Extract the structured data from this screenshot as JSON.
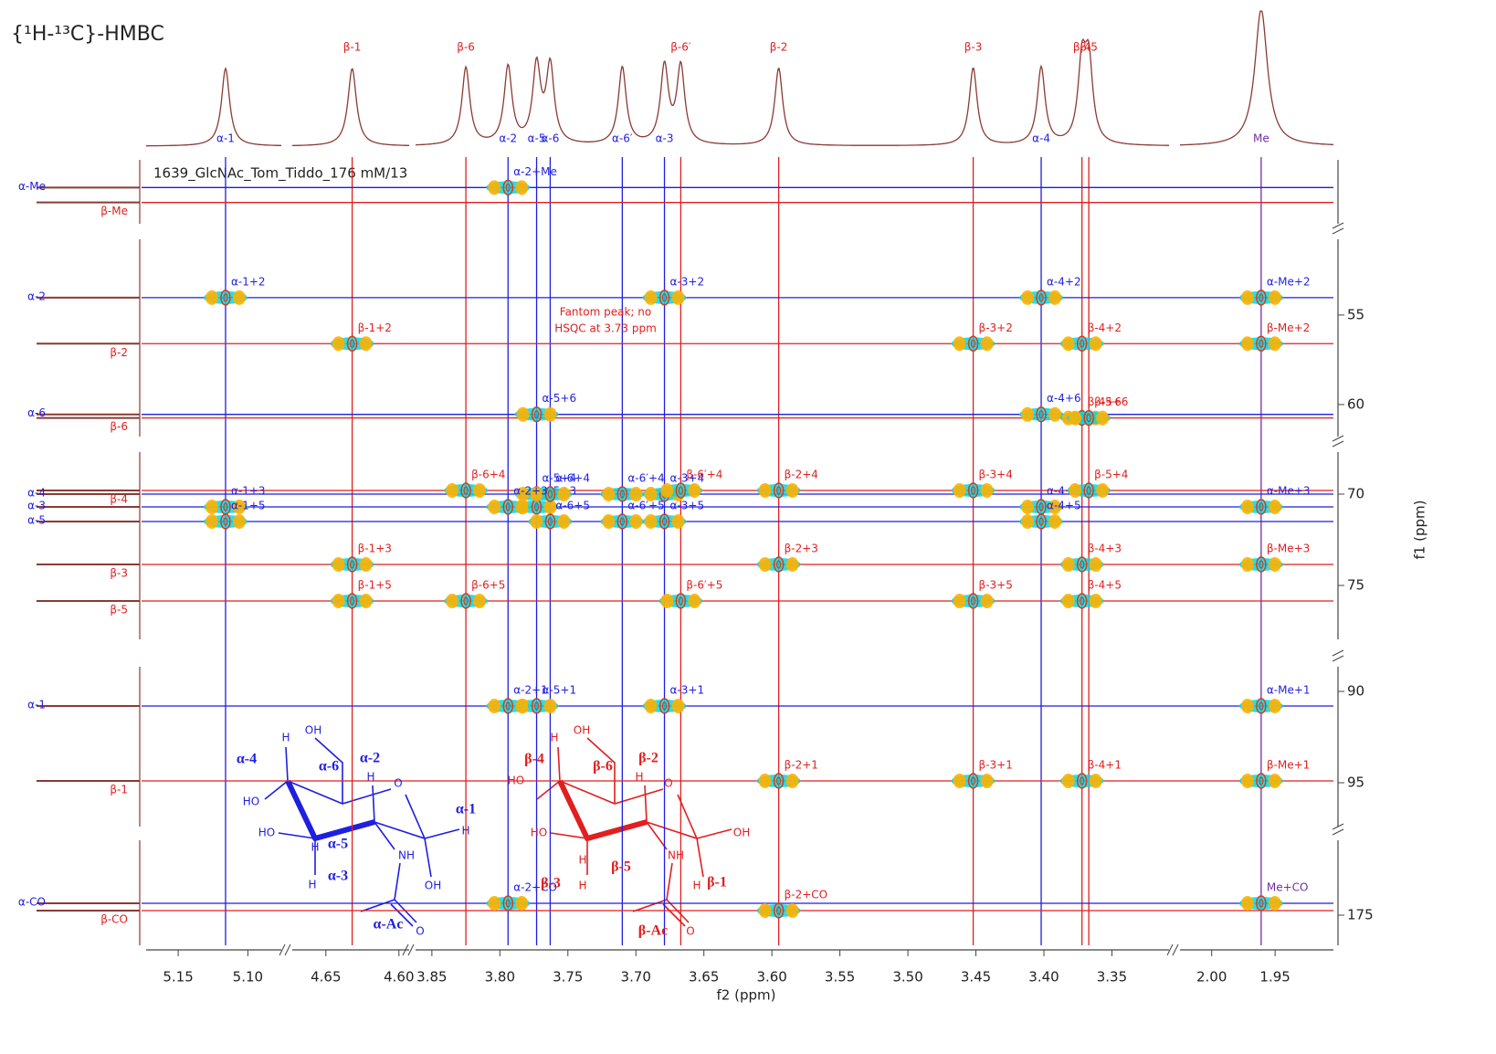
{
  "title": "{¹H-¹³C}-HMBC",
  "dataset": "1639_GlcNAc_Tom_Tiddo_176 mM/13",
  "x_label": "f2 (ppm)",
  "y_label": "f1 (ppm)",
  "colors": {
    "alpha": "#1f1fe0",
    "beta": "#e01f1f",
    "me": "#7030a0",
    "positive": "#00d8e8",
    "negative": "#ffb000",
    "contour": "#d0401c",
    "trace": "#8a3a34"
  },
  "x_segments": [
    {
      "xlim": [
        5.173,
        5.076
      ],
      "xticks": [
        5.15,
        {
          "value": 5.1,
          "label": "5.10"
        }
      ]
    },
    {
      "xlim": [
        4.673,
        4.593
      ],
      "xticks": [
        4.65,
        {
          "value": 4.6,
          "label": "4.60"
        }
      ]
    },
    {
      "xlim": [
        3.862,
        3.308
      ],
      "xticks": [
        3.85,
        {
          "value": 3.8,
          "label": "3.80"
        },
        3.75,
        {
          "value": 3.7,
          "label": "3.70"
        },
        3.65,
        {
          "value": 3.6,
          "label": "3.60"
        },
        3.55,
        {
          "value": 3.5,
          "label": "3.50"
        },
        3.45,
        {
          "value": 3.4,
          "label": "3.40"
        },
        3.35
      ]
    },
    {
      "xlim": [
        2.025,
        1.904
      ],
      "xticks": [
        {
          "value": 2,
          "label": "2.00"
        },
        1.95
      ]
    }
  ],
  "y_segments": [
    {
      "ylim": [
        21.5,
        24.5
      ]
    },
    {
      "ylim": [
        50.77,
        61.79
      ],
      "yticks": [
        55,
        60
      ]
    },
    {
      "ylim": [
        67.7,
        77.95
      ],
      "yticks": [
        70,
        75
      ]
    },
    {
      "ylim": [
        88.65,
        97.4
      ],
      "yticks": [
        90,
        95
      ]
    },
    {
      "ylim": [
        170.9,
        176.65
      ],
      "yticks": [
        175
      ]
    }
  ],
  "protons": [
    {
      "name": "α-1",
      "shift": 5.116
    },
    {
      "name": "β-1",
      "shift": 4.632
    },
    {
      "name": "β-6",
      "shift": 3.825
    },
    {
      "name": "α-2",
      "shift": 3.794
    },
    {
      "name": "α-5",
      "shift": 3.773
    },
    {
      "name": "α-6",
      "shift": 3.763
    },
    {
      "name": "α-6′",
      "shift": 3.71
    },
    {
      "name": "α-3",
      "shift": 3.679
    },
    {
      "name": "β-6′",
      "shift": 3.667
    },
    {
      "name": "β-2",
      "shift": 3.595
    },
    {
      "name": "β-3",
      "shift": 3.452
    },
    {
      "name": "α-4",
      "shift": 3.402
    },
    {
      "name": "β-4",
      "shift": 3.372
    },
    {
      "name": "β-5",
      "shift": 3.367
    },
    {
      "name": "Me",
      "shift": 1.961
    }
  ],
  "carbons": [
    {
      "name": "α-Me",
      "shift": 22.8
    },
    {
      "name": "β-Me",
      "shift": 23.5
    },
    {
      "name": "α-2",
      "shift": 54.03
    },
    {
      "name": "β-2",
      "shift": 56.6
    },
    {
      "name": "α-6",
      "shift": 60.55
    },
    {
      "name": "β-6",
      "shift": 60.75
    },
    {
      "name": "β-4",
      "shift": 69.8
    },
    {
      "name": "α-4",
      "shift": 70.0
    },
    {
      "name": "α-3",
      "shift": 70.7
    },
    {
      "name": "α-5",
      "shift": 71.5
    },
    {
      "name": "β-3",
      "shift": 73.85
    },
    {
      "name": "β-5",
      "shift": 75.85
    },
    {
      "name": "α-1",
      "shift": 90.8
    },
    {
      "name": "β-1",
      "shift": 94.9
    },
    {
      "name": "α-CO",
      "shift": 174.35
    },
    {
      "name": "β-CO",
      "shift": 174.75
    }
  ],
  "cross_peaks": [
    "α-2+Me",
    "α-1+2",
    "α-3+2",
    "α-4+2",
    "α-Me+2",
    "β-1+2",
    "β-3+2",
    "β-4+2",
    "β-Me+2",
    "α-5+6",
    "α-4+6",
    "β-4+6",
    "β-5+6",
    "β-6+4",
    "α-5+4",
    "α-5+3",
    "α-6+4",
    "α-6′+4",
    "α-3+4",
    "β-6′+4",
    "β-2+4",
    "β-3+4",
    "α-4+3",
    "β-5+4",
    "α-Me+3",
    "α-1+3",
    "α-2+3",
    "α-6+5",
    "α-6′+5",
    "α-3+5",
    "α-4+5",
    "α-1+5",
    "β-1+3",
    "β-2+3",
    "β-4+3",
    "β-Me+3",
    "β-1+5",
    "β-6+5",
    "β-6′+5",
    "β-3+5",
    "β-4+5",
    "α-5+1",
    "α-2+1",
    "α-3+1",
    "α-Me+1",
    "β-2+1",
    "β-3+1",
    "β-4+1",
    "β-Me+1",
    "α-2+CO",
    "β-2+CO",
    "Me+CO"
  ],
  "annotation": [
    "Fantom peak; no",
    "HSQC at 3.73 ppm"
  ],
  "structures": {
    "alpha": [
      "α-4",
      "H",
      "OH",
      "α-6",
      "α-2",
      "H",
      "O",
      "HO",
      "α-1",
      "H",
      "HO",
      "α-5",
      "NH",
      "H",
      "α-3",
      "H",
      "OH",
      "α-Ac",
      "O"
    ],
    "beta": [
      "β-4",
      "H",
      "OH",
      "β-6",
      "β-2",
      "H",
      "O",
      "HO",
      "β-1",
      "OH",
      "HO",
      "β-5",
      "NH",
      "H",
      "β-3",
      "H",
      "H",
      "β-Ac",
      "O"
    ]
  }
}
